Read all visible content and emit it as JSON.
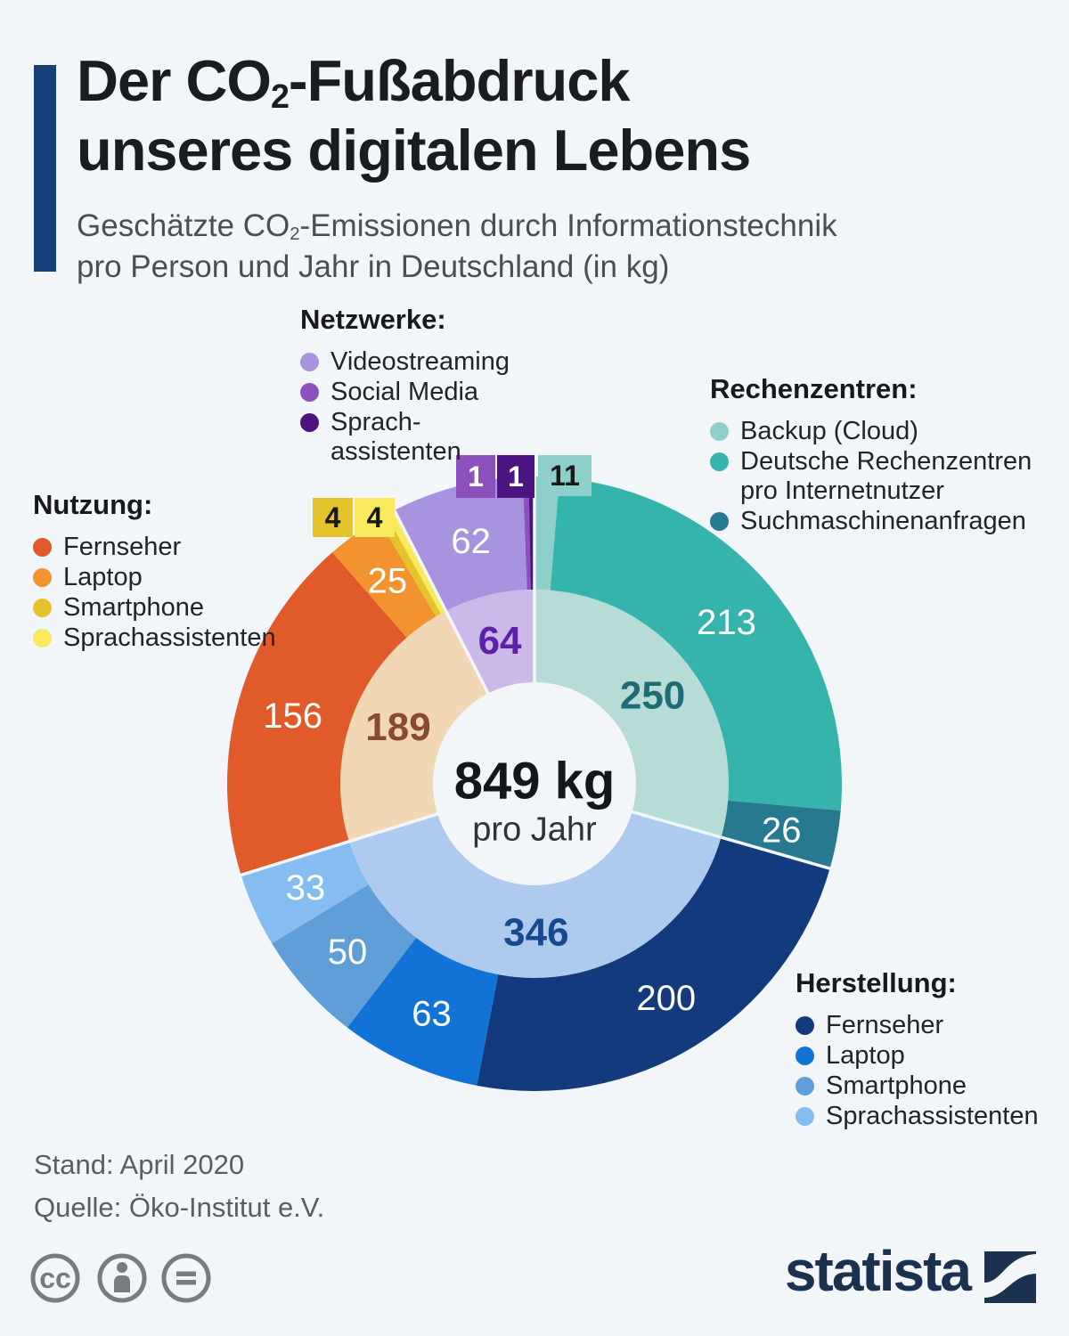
{
  "header": {
    "title_line1_prefix": "Der CO",
    "title_line1_sub": "2",
    "title_line1_suffix": "-Fußabdruck",
    "title_line2": "unseres digitalen Lebens",
    "subtitle_prefix": "Geschätzte CO",
    "subtitle_sub": "2",
    "subtitle_suffix": "-Emissionen durch Informationstechnik",
    "subtitle_line2": "pro Person und Jahr in Deutschland (in kg)"
  },
  "chart_data": {
    "type": "donut",
    "title": "Der CO2-Fußabdruck unseres digitalen Lebens",
    "subtitle": "Geschätzte CO2-Emissionen durch Informationstechnik pro Person und Jahr in Deutschland (in kg)",
    "unit": "kg CO2 pro Person und Jahr",
    "total": 849,
    "center": {
      "value_label": "849 kg",
      "sublabel": "pro Jahr"
    },
    "groups": [
      {
        "name": "Rechenzentren",
        "inner_value": 250,
        "inner_color": "#b7dbd7",
        "inner_label_color": "#1d6b75",
        "segments": [
          {
            "label": "Backup (Cloud)",
            "value": 11,
            "color": "#8ecfc9",
            "callout": true
          },
          {
            "label": "Deutsche Rechenzentren pro Internetnutzer",
            "value": 213,
            "color": "#35b4ab"
          },
          {
            "label": "Suchmaschinenanfragen",
            "value": 26,
            "color": "#26798f"
          }
        ]
      },
      {
        "name": "Herstellung",
        "inner_value": 346,
        "inner_color": "#aecaef",
        "inner_label_color": "#16498f",
        "segments": [
          {
            "label": "Fernseher",
            "value": 200,
            "color": "#133a7c"
          },
          {
            "label": "Laptop",
            "value": 63,
            "color": "#1273d6"
          },
          {
            "label": "Smartphone",
            "value": 50,
            "color": "#5f9ed6"
          },
          {
            "label": "Sprachassistenten",
            "value": 33,
            "color": "#85bdf0"
          }
        ]
      },
      {
        "name": "Nutzung",
        "inner_value": 189,
        "inner_color": "#f2d7b4",
        "inner_label_color": "#8a4a30",
        "segments": [
          {
            "label": "Fernseher",
            "value": 156,
            "color": "#e05a2a"
          },
          {
            "label": "Laptop",
            "value": 25,
            "color": "#f2932f"
          },
          {
            "label": "Smartphone",
            "value": 4,
            "color": "#e5c32a",
            "callout": true
          },
          {
            "label": "Sprachassistenten",
            "value": 4,
            "color": "#f8e95d",
            "callout": true
          }
        ]
      },
      {
        "name": "Netzwerke",
        "inner_value": 64,
        "inner_color": "#cbbae9",
        "inner_label_color": "#5b21a8",
        "segments": [
          {
            "label": "Videostreaming",
            "value": 62,
            "color": "#a893de"
          },
          {
            "label": "Social Media",
            "value": 1,
            "color": "#8c51bd",
            "callout": true
          },
          {
            "label": "Sprachassistenten",
            "value": 1,
            "color": "#4a1481",
            "callout": true
          }
        ]
      }
    ]
  },
  "legends": [
    {
      "title": "Netzwerke:",
      "items": [
        {
          "label": "Videostreaming",
          "color": "#a893de"
        },
        {
          "label": "Social Media",
          "color": "#8c51bd"
        },
        {
          "label": "Sprach-\nassistenten",
          "color": "#4a1481"
        }
      ]
    },
    {
      "title": "Rechenzentren:",
      "items": [
        {
          "label": "Backup (Cloud)",
          "color": "#8ecfc9"
        },
        {
          "label": "Deutsche Rechenzentren\npro Internetnutzer",
          "color": "#35b4ab"
        },
        {
          "label": "Suchmaschinenanfragen",
          "color": "#26798f"
        }
      ]
    },
    {
      "title": "Nutzung:",
      "items": [
        {
          "label": "Fernseher",
          "color": "#e05a2a"
        },
        {
          "label": "Laptop",
          "color": "#f2932f"
        },
        {
          "label": "Smartphone",
          "color": "#e5c32a"
        },
        {
          "label": "Sprachassistenten",
          "color": "#f8e95d"
        }
      ]
    },
    {
      "title": "Herstellung:",
      "items": [
        {
          "label": "Fernseher",
          "color": "#133a7c"
        },
        {
          "label": "Laptop",
          "color": "#1273d6"
        },
        {
          "label": "Smartphone",
          "color": "#5f9ed6"
        },
        {
          "label": "Sprachassistenten",
          "color": "#85bdf0"
        }
      ]
    }
  ],
  "footer": {
    "stand": "Stand: April 2020",
    "quelle": "Quelle: Öko-Institut e.V."
  },
  "branding": {
    "wordmark": "statista"
  },
  "colors": {
    "background": "#f2f6f8",
    "accent": "#15407a",
    "brand_navy": "#1b3150"
  }
}
